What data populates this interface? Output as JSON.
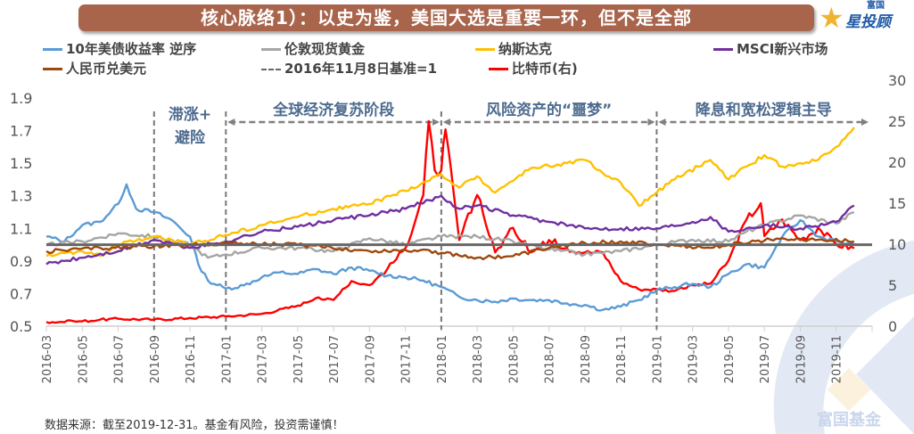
{
  "header": {
    "title": "核心脉络1）：以史为鉴，美国大选是重要一环，但不是全部",
    "logo_small": "富国",
    "logo_big": "投顾",
    "logo_prefix": "星"
  },
  "footnote": "数据来源：截至2019-12-31。基金有风险，投资需谨慎！",
  "watermark": "富国基金",
  "colors": {
    "title_bg": "#a9644c",
    "phase_text": "#4d6b8f",
    "phase_arrow": "#808080"
  },
  "chart_data": {
    "type": "line",
    "title": "核心脉络1）：以史为鉴，美国大选是重要一环，但不是全部",
    "xlabel": "",
    "ylabel_left": "",
    "ylabel_right": "",
    "x_ticks": [
      "2016-03",
      "2016-05",
      "2016-07",
      "2016-09",
      "2016-11",
      "2017-01",
      "2017-03",
      "2017-05",
      "2017-07",
      "2017-09",
      "2017-11",
      "2018-01",
      "2018-03",
      "2018-05",
      "2018-07",
      "2018-09",
      "2018-11",
      "2019-01",
      "2019-03",
      "2019-05",
      "2019-07",
      "2019-09",
      "2019-11"
    ],
    "x_range": [
      "2016-03",
      "2019-12-31"
    ],
    "y_left": {
      "ticks": [
        "0.5",
        "0.7",
        "0.9",
        "1.1",
        "1.3",
        "1.5",
        "1.7",
        "1.9"
      ],
      "range": [
        0.5,
        1.9
      ]
    },
    "y_right": {
      "ticks": [
        "0",
        "5",
        "10",
        "15",
        "20",
        "25",
        "30"
      ],
      "range": [
        0,
        30
      ]
    },
    "grid": false,
    "legend_position": "top",
    "baseline": {
      "label": "2016年11月8日基准=1",
      "value": 1,
      "color": "#666666"
    },
    "phase_dividers": [
      "2016-09",
      "2017-01",
      "2018-01",
      "2019-01"
    ],
    "phases": [
      {
        "label": "滞涨+",
        "label2": "避险",
        "start": "2016-09",
        "end": "2017-01",
        "arrow": false
      },
      {
        "label": "全球经济复苏阶段",
        "start": "2017-01",
        "end": "2018-01",
        "arrow": true
      },
      {
        "label": "风险资产的“噩梦”",
        "start": "2018-01",
        "end": "2019-01",
        "arrow": true
      },
      {
        "label": "降息和宽松逻辑主导",
        "start": "2019-01",
        "end": "2019-12",
        "arrow": true
      }
    ],
    "series": [
      {
        "name": "10年美债收益率 逆序",
        "color": "#5b9bd5",
        "axis": "left",
        "x": [
          "2016-03",
          "2016-04",
          "2016-05",
          "2016-06",
          "2016-07",
          "2016-07-15",
          "2016-08",
          "2016-09",
          "2016-10",
          "2016-11",
          "2016-11-15",
          "2016-12",
          "2017-01",
          "2017-02",
          "2017-03",
          "2017-04",
          "2017-05",
          "2017-06",
          "2017-07",
          "2017-08",
          "2017-09",
          "2017-10",
          "2017-11",
          "2017-12",
          "2018-01",
          "2018-02",
          "2018-03",
          "2018-04",
          "2018-05",
          "2018-06",
          "2018-07",
          "2018-08",
          "2018-09",
          "2018-10",
          "2018-11",
          "2018-12",
          "2019-01",
          "2019-02",
          "2019-03",
          "2019-04",
          "2019-05",
          "2019-06",
          "2019-07",
          "2019-08",
          "2019-09",
          "2019-10",
          "2019-11",
          "2019-12"
        ],
        "values": [
          1.05,
          1.02,
          1.12,
          1.14,
          1.25,
          1.37,
          1.22,
          1.2,
          1.15,
          1.05,
          0.88,
          0.78,
          0.73,
          0.75,
          0.8,
          0.83,
          0.82,
          0.85,
          0.82,
          0.86,
          0.84,
          0.81,
          0.8,
          0.78,
          0.74,
          0.68,
          0.66,
          0.65,
          0.67,
          0.66,
          0.66,
          0.64,
          0.63,
          0.6,
          0.62,
          0.66,
          0.72,
          0.74,
          0.76,
          0.74,
          0.82,
          0.88,
          0.86,
          1.05,
          1.15,
          1.05,
          1.02,
          1.0
        ]
      },
      {
        "name": "伦敦现货黄金",
        "color": "#a5a5a5",
        "axis": "left",
        "x": [
          "2016-03",
          "2016-05",
          "2016-07",
          "2016-09",
          "2016-11",
          "2016-12",
          "2017-01",
          "2017-03",
          "2017-05",
          "2017-07",
          "2017-09",
          "2017-11",
          "2018-01",
          "2018-03",
          "2018-05",
          "2018-07",
          "2018-09",
          "2018-11",
          "2019-01",
          "2019-03",
          "2019-05",
          "2019-06",
          "2019-07",
          "2019-09",
          "2019-11",
          "2019-12"
        ],
        "values": [
          1.0,
          1.02,
          1.07,
          1.05,
          1.0,
          0.92,
          0.94,
          0.98,
          0.98,
          0.96,
          1.04,
          1.0,
          1.05,
          1.05,
          1.02,
          0.97,
          0.94,
          0.96,
          1.0,
          1.03,
          1.02,
          1.08,
          1.12,
          1.18,
          1.13,
          1.2
        ]
      },
      {
        "name": "纳斯达克",
        "color": "#ffc000",
        "axis": "left",
        "x": [
          "2016-03",
          "2016-05",
          "2016-06",
          "2016-07",
          "2016-09",
          "2016-11",
          "2017-01",
          "2017-03",
          "2017-05",
          "2017-07",
          "2017-09",
          "2017-11",
          "2018-01",
          "2018-02",
          "2018-03",
          "2018-04",
          "2018-06",
          "2018-08",
          "2018-09",
          "2018-10",
          "2018-11",
          "2018-12",
          "2019-01",
          "2019-02",
          "2019-04",
          "2019-05",
          "2019-06",
          "2019-07",
          "2019-08",
          "2019-09",
          "2019-10",
          "2019-11",
          "2019-12"
        ],
        "values": [
          0.93,
          0.96,
          0.93,
          1.0,
          1.05,
          1.0,
          1.06,
          1.12,
          1.17,
          1.22,
          1.25,
          1.33,
          1.43,
          1.35,
          1.42,
          1.32,
          1.47,
          1.5,
          1.52,
          1.44,
          1.38,
          1.24,
          1.32,
          1.4,
          1.52,
          1.4,
          1.48,
          1.55,
          1.48,
          1.5,
          1.52,
          1.6,
          1.72
        ]
      },
      {
        "name": "MSCI新兴市场",
        "color": "#7030a0",
        "axis": "left",
        "x": [
          "2016-03",
          "2016-05",
          "2016-07",
          "2016-09",
          "2016-11",
          "2017-01",
          "2017-03",
          "2017-05",
          "2017-07",
          "2017-09",
          "2017-11",
          "2018-01",
          "2018-02",
          "2018-03",
          "2018-05",
          "2018-07",
          "2018-09",
          "2018-11",
          "2019-01",
          "2019-03",
          "2019-04",
          "2019-05",
          "2019-07",
          "2019-09",
          "2019-11",
          "2019-12"
        ],
        "values": [
          0.88,
          0.92,
          0.96,
          1.03,
          0.98,
          1.02,
          1.08,
          1.11,
          1.15,
          1.18,
          1.22,
          1.3,
          1.22,
          1.24,
          1.18,
          1.14,
          1.1,
          1.1,
          1.1,
          1.14,
          1.17,
          1.08,
          1.12,
          1.1,
          1.14,
          1.24
        ]
      },
      {
        "name": "人民币兑美元",
        "color": "#9e480e",
        "axis": "left",
        "x": [
          "2016-03",
          "2016-06",
          "2016-09",
          "2016-11",
          "2017-01",
          "2017-05",
          "2017-09",
          "2017-12",
          "2018-01",
          "2018-03",
          "2018-05",
          "2018-07",
          "2018-09",
          "2018-11",
          "2019-01",
          "2019-04",
          "2019-05",
          "2019-08",
          "2019-10",
          "2019-12"
        ],
        "values": [
          0.96,
          0.98,
          0.99,
          1.0,
          1.01,
          1.0,
          0.96,
          0.97,
          0.95,
          0.92,
          0.93,
          0.98,
          1.01,
          1.02,
          1.0,
          0.98,
          1.0,
          1.04,
          1.03,
          1.02
        ]
      },
      {
        "name": "比特币(右)",
        "color": "#ff0000",
        "axis": "right",
        "x": [
          "2016-03",
          "2016-05",
          "2016-06",
          "2016-07",
          "2016-09",
          "2016-11",
          "2017-01",
          "2017-03",
          "2017-05",
          "2017-06",
          "2017-07",
          "2017-08",
          "2017-09",
          "2017-10",
          "2017-11",
          "2017-12",
          "2017-12-10",
          "2017-12-20",
          "2018-01",
          "2018-01-08",
          "2018-02",
          "2018-03",
          "2018-04",
          "2018-05",
          "2018-06",
          "2018-07",
          "2018-08",
          "2018-09",
          "2018-10",
          "2018-11",
          "2018-12",
          "2019-01",
          "2019-02",
          "2019-03",
          "2019-04",
          "2019-05",
          "2019-06",
          "2019-06-25",
          "2019-07",
          "2019-08",
          "2019-09",
          "2019-10",
          "2019-11",
          "2019-12"
        ],
        "values": [
          0.5,
          0.6,
          0.8,
          0.9,
          0.8,
          1.0,
          1.2,
          1.5,
          2.5,
          3.4,
          3.2,
          5.5,
          5.0,
          7.0,
          9.5,
          16.0,
          25.0,
          19.0,
          19.0,
          24.0,
          10.5,
          16.0,
          9.0,
          12.0,
          9.0,
          10.5,
          9.5,
          9.0,
          9.0,
          5.5,
          4.5,
          4.5,
          4.3,
          5.0,
          5.2,
          8.0,
          13.0,
          15.0,
          11.0,
          13.0,
          10.5,
          12.0,
          10.0,
          9.5
        ]
      },
      {
        "name": "2016年11月8日基准=1",
        "color": "#666666",
        "axis": "left",
        "x": [
          "2016-03",
          "2019-12-31"
        ],
        "values": [
          1,
          1
        ]
      }
    ]
  },
  "legend": [
    {
      "label": "10年美债收益率 逆序",
      "color": "#5b9bd5",
      "style": "solid"
    },
    {
      "label": "伦敦现货黄金",
      "color": "#a5a5a5",
      "style": "solid"
    },
    {
      "label": "纳斯达克",
      "color": "#ffc000",
      "style": "solid"
    },
    {
      "label": "MSCI新兴市场",
      "color": "#7030a0",
      "style": "solid"
    },
    {
      "label": "人民币兑美元",
      "color": "#9e480e",
      "style": "solid"
    },
    {
      "label": "2016年11月8日基准=1",
      "color": "#666666",
      "style": "dashed"
    },
    {
      "label": "比特币(右)",
      "color": "#ff0000",
      "style": "solid"
    }
  ]
}
